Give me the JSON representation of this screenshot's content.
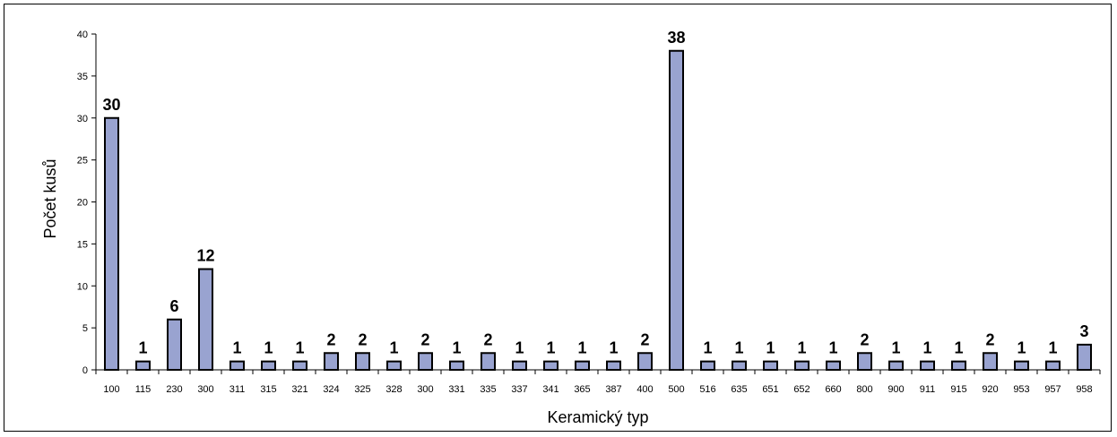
{
  "chart_data": {
    "type": "bar",
    "categories": [
      "100",
      "115",
      "230",
      "300",
      "311",
      "315",
      "321",
      "324",
      "325",
      "328",
      "300",
      "331",
      "335",
      "337",
      "341",
      "365",
      "387",
      "400",
      "500",
      "516",
      "635",
      "651",
      "652",
      "660",
      "800",
      "900",
      "911",
      "915",
      "920",
      "953",
      "957",
      "958"
    ],
    "values": [
      30,
      1,
      6,
      12,
      1,
      1,
      1,
      2,
      2,
      1,
      2,
      1,
      2,
      1,
      1,
      1,
      1,
      2,
      38,
      1,
      1,
      1,
      1,
      1,
      2,
      1,
      1,
      1,
      2,
      1,
      1,
      3
    ],
    "data_labels": [
      "30",
      "1",
      "6",
      "12",
      "1",
      "1",
      "1",
      "2",
      "2",
      "1",
      "2",
      "1",
      "2",
      "1",
      "1",
      "1",
      "1",
      "2",
      "38",
      "1",
      "1",
      "1",
      "1",
      "1",
      "2",
      "1",
      "1",
      "1",
      "2",
      "1",
      "1",
      "3"
    ],
    "xlabel": "Keramický typ",
    "ylabel": "Počet kusů",
    "ylim": [
      0,
      40
    ],
    "yticks": [
      "0",
      "5",
      "10",
      "15",
      "20",
      "25",
      "30",
      "35",
      "40"
    ],
    "grid": false,
    "legend": "none",
    "colors": {
      "bar_fill": "#99a3d0",
      "bar_stroke": "#000000"
    }
  }
}
